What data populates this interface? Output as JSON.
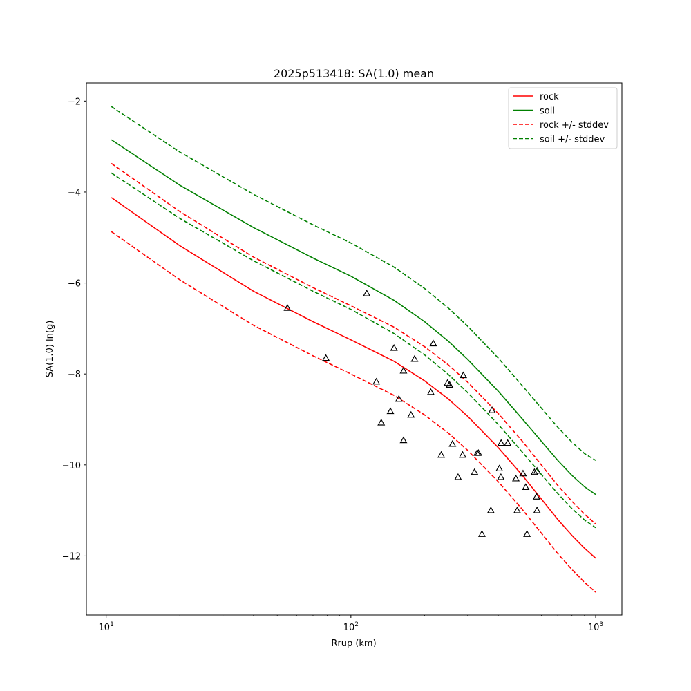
{
  "chart_data": {
    "type": "line",
    "title": "2025p513418: SA(1.0) mean",
    "xlabel": "Rrup (km)",
    "ylabel": "SA(1.0) ln(g)",
    "xscale": "log",
    "xlim": [
      8.3,
      1280
    ],
    "ylim": [
      -13.3,
      -1.6
    ],
    "grid": false,
    "legend_position": "top-right",
    "x_ticks": [
      {
        "value": 10,
        "base": "10",
        "exp": "1"
      },
      {
        "value": 100,
        "base": "10",
        "exp": "2"
      },
      {
        "value": 1000,
        "base": "10",
        "exp": "3"
      }
    ],
    "y_ticks": [
      {
        "value": -2,
        "label": "−2"
      },
      {
        "value": -4,
        "label": "−4"
      },
      {
        "value": -6,
        "label": "−6"
      },
      {
        "value": -8,
        "label": "−8"
      },
      {
        "value": -10,
        "label": "−10"
      },
      {
        "value": -12,
        "label": "−12"
      }
    ],
    "x": [
      10.5,
      20,
      40,
      70,
      100,
      150,
      200,
      250,
      300,
      400,
      500,
      600,
      700,
      800,
      900,
      1000
    ],
    "series": [
      {
        "name": "rock",
        "color": "#ff0000",
        "dash": false,
        "values": [
          -4.12,
          -5.18,
          -6.18,
          -6.85,
          -7.25,
          -7.72,
          -8.15,
          -8.55,
          -8.93,
          -9.62,
          -10.22,
          -10.75,
          -11.2,
          -11.55,
          -11.83,
          -12.05
        ]
      },
      {
        "name": "soil",
        "color": "#008000",
        "dash": false,
        "values": [
          -2.85,
          -3.85,
          -4.78,
          -5.45,
          -5.85,
          -6.38,
          -6.85,
          -7.28,
          -7.68,
          -8.38,
          -8.98,
          -9.48,
          -9.9,
          -10.23,
          -10.48,
          -10.65
        ]
      },
      {
        "name": "rock +/- stddev",
        "color": "#ff0000",
        "dash": true,
        "legend": true,
        "values": [
          -3.37,
          -4.43,
          -5.43,
          -6.1,
          -6.5,
          -6.97,
          -7.4,
          -7.8,
          -8.18,
          -8.87,
          -9.47,
          -10.0,
          -10.45,
          -10.8,
          -11.08,
          -11.3
        ]
      },
      {
        "name": "rock +/- stddev",
        "color": "#ff0000",
        "dash": true,
        "legend": false,
        "values": [
          -4.87,
          -5.93,
          -6.93,
          -7.6,
          -8.0,
          -8.47,
          -8.9,
          -9.3,
          -9.68,
          -10.37,
          -10.97,
          -11.5,
          -11.95,
          -12.3,
          -12.58,
          -12.8
        ]
      },
      {
        "name": "soil +/- stddev",
        "color": "#008000",
        "dash": true,
        "legend": true,
        "values": [
          -2.12,
          -3.12,
          -4.05,
          -4.72,
          -5.12,
          -5.65,
          -6.12,
          -6.55,
          -6.95,
          -7.65,
          -8.25,
          -8.75,
          -9.17,
          -9.5,
          -9.75,
          -9.9
        ]
      },
      {
        "name": "soil +/- stddev",
        "color": "#008000",
        "dash": true,
        "legend": false,
        "values": [
          -3.58,
          -4.58,
          -5.51,
          -6.18,
          -6.58,
          -7.11,
          -7.58,
          -8.01,
          -8.41,
          -9.11,
          -9.71,
          -10.21,
          -10.63,
          -10.96,
          -11.21,
          -11.38
        ]
      }
    ],
    "observations": [
      {
        "x": 55,
        "y": -6.55
      },
      {
        "x": 79,
        "y": -7.65
      },
      {
        "x": 116,
        "y": -6.23
      },
      {
        "x": 127,
        "y": -8.17
      },
      {
        "x": 133,
        "y": -9.07
      },
      {
        "x": 145,
        "y": -8.82
      },
      {
        "x": 150,
        "y": -7.43
      },
      {
        "x": 157,
        "y": -8.55
      },
      {
        "x": 164,
        "y": -7.93
      },
      {
        "x": 164,
        "y": -9.46
      },
      {
        "x": 176,
        "y": -8.9
      },
      {
        "x": 182,
        "y": -7.67
      },
      {
        "x": 212,
        "y": -8.4
      },
      {
        "x": 217,
        "y": -7.33
      },
      {
        "x": 234,
        "y": -9.78
      },
      {
        "x": 248,
        "y": -8.2
      },
      {
        "x": 253,
        "y": -8.24
      },
      {
        "x": 260,
        "y": -9.54
      },
      {
        "x": 274,
        "y": -10.27
      },
      {
        "x": 286,
        "y": -9.78
      },
      {
        "x": 288,
        "y": -8.03
      },
      {
        "x": 320,
        "y": -10.16
      },
      {
        "x": 328,
        "y": -9.74
      },
      {
        "x": 332,
        "y": -9.74
      },
      {
        "x": 343,
        "y": -11.52
      },
      {
        "x": 373,
        "y": -11.0
      },
      {
        "x": 377,
        "y": -8.8
      },
      {
        "x": 404,
        "y": -10.08
      },
      {
        "x": 410,
        "y": -10.27
      },
      {
        "x": 411,
        "y": -9.52
      },
      {
        "x": 437,
        "y": -9.52
      },
      {
        "x": 472,
        "y": -10.3
      },
      {
        "x": 478,
        "y": -11.0
      },
      {
        "x": 505,
        "y": -10.19
      },
      {
        "x": 518,
        "y": -10.49
      },
      {
        "x": 524,
        "y": -11.52
      },
      {
        "x": 562,
        "y": -10.16
      },
      {
        "x": 573,
        "y": -10.7
      },
      {
        "x": 576,
        "y": -11.0
      },
      {
        "x": 576,
        "y": -10.13
      }
    ]
  }
}
